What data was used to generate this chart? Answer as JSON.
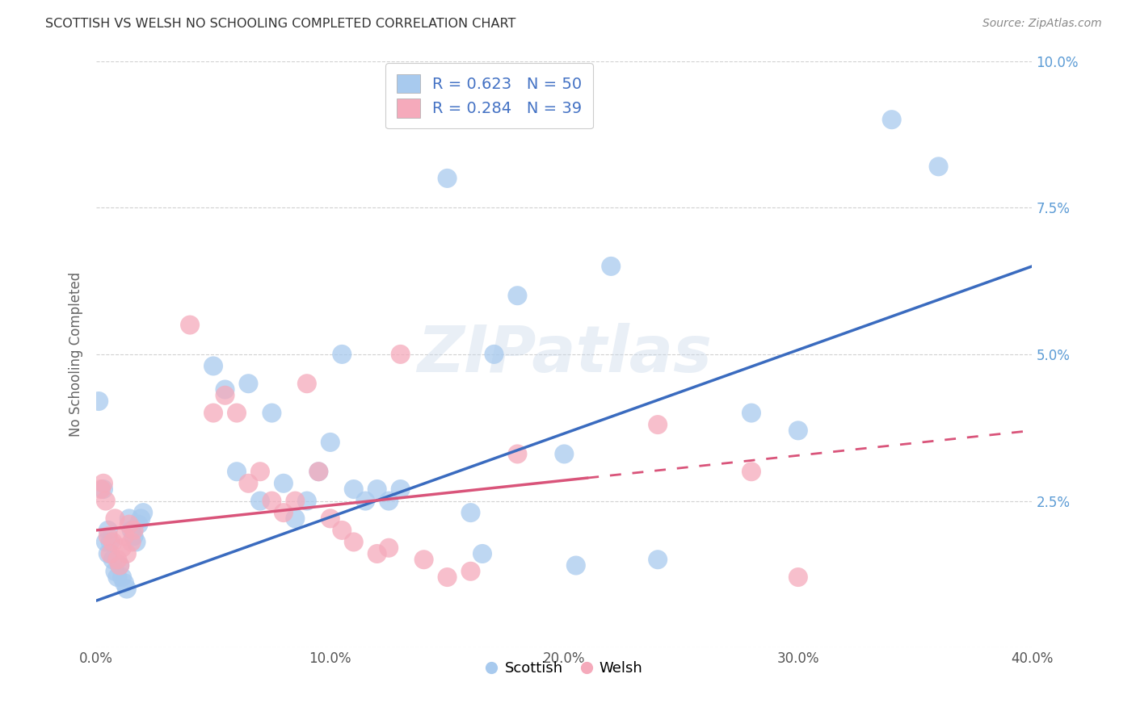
{
  "title": "SCOTTISH VS WELSH NO SCHOOLING COMPLETED CORRELATION CHART",
  "source": "Source: ZipAtlas.com",
  "ylabel": "No Schooling Completed",
  "xlim": [
    0.0,
    0.4
  ],
  "ylim": [
    0.0,
    0.1
  ],
  "xticks": [
    0.0,
    0.1,
    0.2,
    0.3,
    0.4
  ],
  "yticks": [
    0.0,
    0.025,
    0.05,
    0.075,
    0.1
  ],
  "xtick_labels": [
    "0.0%",
    "10.0%",
    "20.0%",
    "30.0%",
    "40.0%"
  ],
  "ytick_labels_right": [
    "",
    "2.5%",
    "5.0%",
    "7.5%",
    "10.0%"
  ],
  "scottish_R": 0.623,
  "scottish_N": 50,
  "welsh_R": 0.284,
  "welsh_N": 39,
  "scottish_color": "#A8CAEE",
  "welsh_color": "#F5AABB",
  "scottish_line_color": "#3A6BBF",
  "welsh_line_color": "#D9547A",
  "background_color": "#FFFFFF",
  "watermark": "ZIPatlas",
  "scottish_points": [
    [
      0.001,
      0.042
    ],
    [
      0.003,
      0.027
    ],
    [
      0.004,
      0.018
    ],
    [
      0.005,
      0.02
    ],
    [
      0.005,
      0.016
    ],
    [
      0.006,
      0.018
    ],
    [
      0.007,
      0.015
    ],
    [
      0.008,
      0.013
    ],
    [
      0.009,
      0.012
    ],
    [
      0.01,
      0.014
    ],
    [
      0.011,
      0.012
    ],
    [
      0.012,
      0.011
    ],
    [
      0.013,
      0.01
    ],
    [
      0.014,
      0.022
    ],
    [
      0.015,
      0.02
    ],
    [
      0.016,
      0.019
    ],
    [
      0.017,
      0.018
    ],
    [
      0.018,
      0.021
    ],
    [
      0.019,
      0.022
    ],
    [
      0.02,
      0.023
    ],
    [
      0.05,
      0.048
    ],
    [
      0.055,
      0.044
    ],
    [
      0.06,
      0.03
    ],
    [
      0.065,
      0.045
    ],
    [
      0.07,
      0.025
    ],
    [
      0.075,
      0.04
    ],
    [
      0.08,
      0.028
    ],
    [
      0.085,
      0.022
    ],
    [
      0.09,
      0.025
    ],
    [
      0.095,
      0.03
    ],
    [
      0.1,
      0.035
    ],
    [
      0.105,
      0.05
    ],
    [
      0.11,
      0.027
    ],
    [
      0.115,
      0.025
    ],
    [
      0.12,
      0.027
    ],
    [
      0.125,
      0.025
    ],
    [
      0.13,
      0.027
    ],
    [
      0.15,
      0.08
    ],
    [
      0.16,
      0.023
    ],
    [
      0.165,
      0.016
    ],
    [
      0.17,
      0.05
    ],
    [
      0.18,
      0.06
    ],
    [
      0.2,
      0.033
    ],
    [
      0.205,
      0.014
    ],
    [
      0.22,
      0.065
    ],
    [
      0.24,
      0.015
    ],
    [
      0.28,
      0.04
    ],
    [
      0.3,
      0.037
    ],
    [
      0.34,
      0.09
    ],
    [
      0.36,
      0.082
    ]
  ],
  "welsh_points": [
    [
      0.002,
      0.027
    ],
    [
      0.003,
      0.028
    ],
    [
      0.004,
      0.025
    ],
    [
      0.005,
      0.019
    ],
    [
      0.006,
      0.016
    ],
    [
      0.007,
      0.018
    ],
    [
      0.008,
      0.022
    ],
    [
      0.009,
      0.015
    ],
    [
      0.01,
      0.014
    ],
    [
      0.011,
      0.017
    ],
    [
      0.012,
      0.019
    ],
    [
      0.013,
      0.016
    ],
    [
      0.014,
      0.021
    ],
    [
      0.015,
      0.018
    ],
    [
      0.016,
      0.02
    ],
    [
      0.04,
      0.055
    ],
    [
      0.05,
      0.04
    ],
    [
      0.055,
      0.043
    ],
    [
      0.06,
      0.04
    ],
    [
      0.065,
      0.028
    ],
    [
      0.07,
      0.03
    ],
    [
      0.075,
      0.025
    ],
    [
      0.08,
      0.023
    ],
    [
      0.085,
      0.025
    ],
    [
      0.09,
      0.045
    ],
    [
      0.095,
      0.03
    ],
    [
      0.1,
      0.022
    ],
    [
      0.105,
      0.02
    ],
    [
      0.11,
      0.018
    ],
    [
      0.12,
      0.016
    ],
    [
      0.125,
      0.017
    ],
    [
      0.13,
      0.05
    ],
    [
      0.14,
      0.015
    ],
    [
      0.15,
      0.012
    ],
    [
      0.16,
      0.013
    ],
    [
      0.18,
      0.033
    ],
    [
      0.24,
      0.038
    ],
    [
      0.28,
      0.03
    ],
    [
      0.3,
      0.012
    ]
  ],
  "scottish_line_x0": 0.0,
  "scottish_line_y0": 0.008,
  "scottish_line_x1": 0.4,
  "scottish_line_y1": 0.065,
  "welsh_line_x0": 0.0,
  "welsh_line_y0": 0.02,
  "welsh_line_solid_x1": 0.21,
  "welsh_line_x1": 0.4,
  "welsh_line_y1": 0.037
}
